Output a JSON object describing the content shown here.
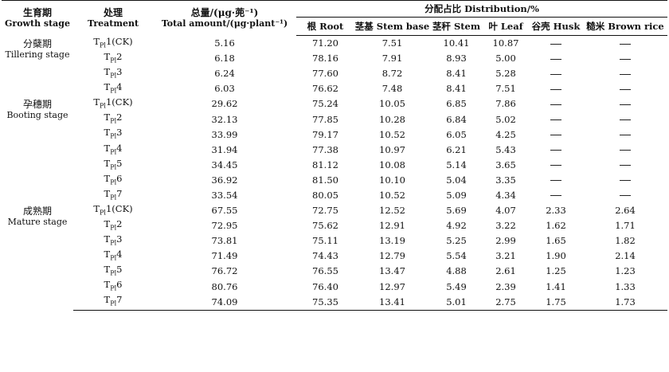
{
  "headers": {
    "stage_cn": "生育期",
    "stage_en": "Growth stage",
    "treatment_cn": "处理",
    "treatment_en": "Treatment",
    "total_cn": "总量/(μg·蔸⁻¹)",
    "total_en": "Total amount/(μg·plant⁻¹)",
    "distribution": "分配占比 Distribution/%",
    "root": "根 Root",
    "stem_base": "茎基 Stem base",
    "stem": "茎秆 Stem",
    "leaf": "叶 Leaf",
    "husk": "谷壳 Husk",
    "brown_rice": "糙米 Brown rice"
  },
  "stages": [
    {
      "cn": "分蘖期",
      "en": "Tillering stage",
      "rows": [
        {
          "t": "T",
          "s": "Pl",
          "n": "1(CK)",
          "total": "5.16",
          "root": "71.20",
          "stem_base": "7.51",
          "stem": "10.41",
          "leaf": "10.87",
          "husk": "—",
          "rice": "—"
        },
        {
          "t": "T",
          "s": "Pl",
          "n": "2",
          "total": "6.18",
          "root": "78.16",
          "stem_base": "7.91",
          "stem": "8.93",
          "leaf": "5.00",
          "husk": "—",
          "rice": "—"
        },
        {
          "t": "T",
          "s": "Pl",
          "n": "3",
          "total": "6.24",
          "root": "77.60",
          "stem_base": "8.72",
          "stem": "8.41",
          "leaf": "5.28",
          "husk": "—",
          "rice": "—"
        },
        {
          "t": "T",
          "s": "Pl",
          "n": "4",
          "total": "6.03",
          "root": "76.62",
          "stem_base": "7.48",
          "stem": "8.41",
          "leaf": "7.51",
          "husk": "—",
          "rice": "—"
        }
      ]
    },
    {
      "cn": "孕穗期",
      "en": "Booting stage",
      "rows": [
        {
          "t": "T",
          "s": "Pl",
          "n": "1(CK)",
          "total": "29.62",
          "root": "75.24",
          "stem_base": "10.05",
          "stem": "6.85",
          "leaf": "7.86",
          "husk": "—",
          "rice": "—"
        },
        {
          "t": "T",
          "s": "Pl",
          "n": "2",
          "total": "32.13",
          "root": "77.85",
          "stem_base": "10.28",
          "stem": "6.84",
          "leaf": "5.02",
          "husk": "—",
          "rice": "—"
        },
        {
          "t": "T",
          "s": "Pl",
          "n": "3",
          "total": "33.99",
          "root": "79.17",
          "stem_base": "10.52",
          "stem": "6.05",
          "leaf": "4.25",
          "husk": "—",
          "rice": "—"
        },
        {
          "t": "T",
          "s": "Pl",
          "n": "4",
          "total": "31.94",
          "root": "77.38",
          "stem_base": "10.97",
          "stem": "6.21",
          "leaf": "5.43",
          "husk": "—",
          "rice": "—"
        },
        {
          "t": "T",
          "s": "Pl",
          "n": "5",
          "total": "34.45",
          "root": "81.12",
          "stem_base": "10.08",
          "stem": "5.14",
          "leaf": "3.65",
          "husk": "—",
          "rice": "—"
        },
        {
          "t": "T",
          "s": "Pl",
          "n": "6",
          "total": "36.92",
          "root": "81.50",
          "stem_base": "10.10",
          "stem": "5.04",
          "leaf": "3.35",
          "husk": "—",
          "rice": "—"
        },
        {
          "t": "T",
          "s": "Pl",
          "n": "7",
          "total": "33.54",
          "root": "80.05",
          "stem_base": "10.52",
          "stem": "5.09",
          "leaf": "4.34",
          "husk": "—",
          "rice": "—"
        }
      ]
    },
    {
      "cn": "成熟期",
      "en": "Mature stage",
      "rows": [
        {
          "t": "T",
          "s": "Pl",
          "n": "1(CK)",
          "total": "67.55",
          "root": "72.75",
          "stem_base": "12.52",
          "stem": "5.69",
          "leaf": "4.07",
          "husk": "2.33",
          "rice": "2.64"
        },
        {
          "t": "T",
          "s": "Pl",
          "n": "2",
          "total": "72.95",
          "root": "75.62",
          "stem_base": "12.91",
          "stem": "4.92",
          "leaf": "3.22",
          "husk": "1.62",
          "rice": "1.71"
        },
        {
          "t": "T",
          "s": "Pl",
          "n": "3",
          "total": "73.81",
          "root": "75.11",
          "stem_base": "13.19",
          "stem": "5.25",
          "leaf": "2.99",
          "husk": "1.65",
          "rice": "1.82"
        },
        {
          "t": "T",
          "s": "Pl",
          "n": "4",
          "total": "71.49",
          "root": "74.43",
          "stem_base": "12.79",
          "stem": "5.54",
          "leaf": "3.21",
          "husk": "1.90",
          "rice": "2.14"
        },
        {
          "t": "T",
          "s": "Pl",
          "n": "5",
          "total": "76.72",
          "root": "76.55",
          "stem_base": "13.47",
          "stem": "4.88",
          "leaf": "2.61",
          "husk": "1.25",
          "rice": "1.23"
        },
        {
          "t": "T",
          "s": "Pl",
          "n": "6",
          "total": "80.76",
          "root": "76.40",
          "stem_base": "12.97",
          "stem": "5.49",
          "leaf": "2.39",
          "husk": "1.41",
          "rice": "1.33"
        },
        {
          "t": "T",
          "s": "Pl",
          "n": "7",
          "total": "74.09",
          "root": "75.35",
          "stem_base": "13.41",
          "stem": "5.01",
          "leaf": "2.75",
          "husk": "1.75",
          "rice": "1.73"
        }
      ]
    }
  ]
}
